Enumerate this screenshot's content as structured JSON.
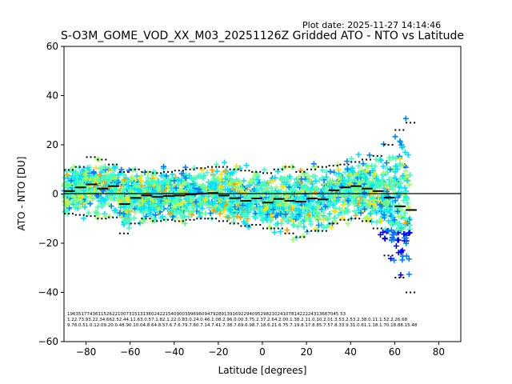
{
  "chart_data": {
    "type": "scatter",
    "title": "S-O3M_GOME_VOD_XX_M03_20251126Z Gridded ATO - NTO vs Latitude",
    "plot_date": "Plot date: 2025-11-27 14:14:46",
    "xlabel": "Latitude [degrees]",
    "ylabel": "ATO - NTO [DU]",
    "xlim": [
      -90,
      90
    ],
    "ylim": [
      -60,
      60
    ],
    "xticks": [
      -80,
      -60,
      -40,
      -20,
      0,
      20,
      40,
      60,
      80
    ],
    "yticks": [
      -60,
      -40,
      -20,
      0,
      20,
      40,
      60
    ],
    "zero_line": 0,
    "grid": false,
    "marker": "plus",
    "colormap": [
      "#0000ff",
      "#0080ff",
      "#00e0ff",
      "#40ffc0",
      "#a0ff60",
      "#ffe000",
      "#ffa000"
    ],
    "band_mean": {
      "lat": [
        -87.5,
        -82.5,
        -77.5,
        -72.5,
        -67.5,
        -62.5,
        -57.5,
        -52.5,
        -47.5,
        -42.5,
        -37.5,
        -32.5,
        -27.5,
        -22.5,
        -17.5,
        -12.5,
        -7.5,
        -2.5,
        2.5,
        7.5,
        12.5,
        17.5,
        22.5,
        27.5,
        32.5,
        37.5,
        42.5,
        47.5,
        52.5,
        57.5,
        62.5,
        67.5
      ],
      "value": [
        1.2,
        2.7,
        3.9,
        2.2,
        3.2,
        -4.1,
        -1.6,
        -0.6,
        -1.2,
        -0.8,
        -0.6,
        -0.2,
        0.2,
        0.4,
        -0.6,
        -1.7,
        -2.8,
        -1.8,
        -3.5,
        -2.0,
        -2.8,
        -3.1,
        -1.8,
        -2.2,
        1.5,
        2.7,
        3.2,
        2.2,
        1.2,
        -1.5,
        -5.0,
        -6.5
      ]
    },
    "band_upper": [
      9.8,
      11.0,
      15.0,
      14.0,
      12.0,
      9.0,
      10.0,
      9.0,
      8.5,
      9.0,
      9.5,
      10.0,
      10.5,
      11.0,
      11.0,
      10.0,
      9.5,
      9.0,
      8.5,
      10.0,
      11.0,
      9.0,
      10.0,
      11.0,
      11.5,
      12.0,
      13.0,
      14.0,
      15.5,
      20.0,
      26.0,
      29.0
    ],
    "band_lower": [
      -8.0,
      -8.5,
      -9.0,
      -10.0,
      -9.5,
      -16.0,
      -12.0,
      -10.0,
      -11.0,
      -10.5,
      -11.0,
      -10.5,
      -10.0,
      -10.0,
      -11.0,
      -12.0,
      -13.0,
      -12.5,
      -14.0,
      -14.0,
      -16.0,
      -17.5,
      -15.0,
      -15.0,
      -12.0,
      -10.5,
      -10.0,
      -11.0,
      -14.0,
      -25.0,
      -34.0,
      -40.0
    ],
    "stats_rows": [
      "1963517743611526221007315131360242215409003996960947928913916922940952982102410781422224313667045 53",
      "1.22.73.93.22.34.662.52.44.11.63.0.57.1.82.1.22.0.83.0.24.0.46.1.08.2.96.0.00.3.75.2.37.2.64.2.00.1.38.2.11.0.10.2.01.3.53.2.53.2.38.0.11.1.52.2.26.68",
      "9.78.0.51.0.12.09.20.0.48.90.10.04.8.64.8.57.6.7.6.79.7.60.7.14.7.41.7.38.7.69.6.98.7.18.6.21.6.75.7.19.8.17.8.85.7.57.8.33.9.31.0.61.1.18.1.70.18.88.15.48"
    ]
  }
}
